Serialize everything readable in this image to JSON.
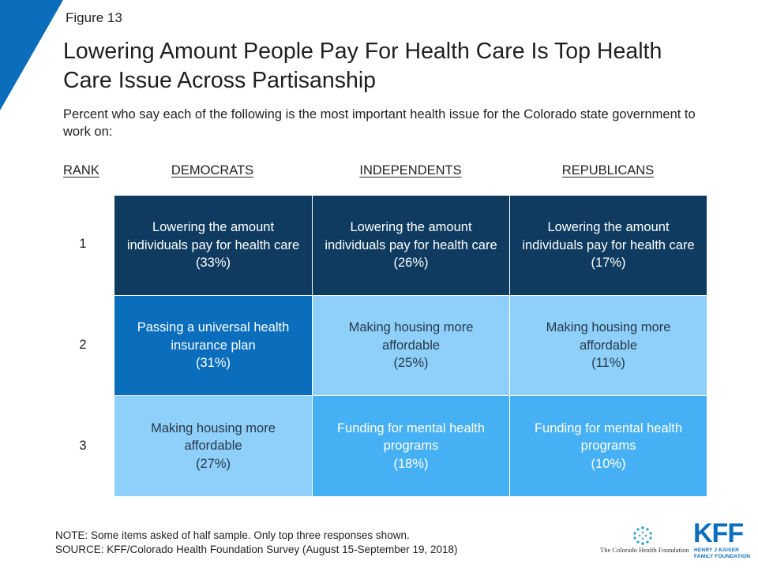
{
  "figure_label": "Figure 13",
  "colors": {
    "corner_accent": "#0a6ebd",
    "navy": "#0e3b5f",
    "blue": "#0a6ebd",
    "sky": "#46b0f5",
    "pale": "#8fd0fb"
  },
  "chart_data": {
    "type": "table",
    "title": "Lowering Amount People Pay For Health Care Is Top Health Care Issue Across Partisanship",
    "subtitle": "Percent who say each of the following is the most important health issue for the Colorado state government to work on:",
    "rank_header": "RANK",
    "columns": [
      "DEMOCRATS",
      "INDEPENDENTS",
      "REPUBLICANS"
    ],
    "ranks": [
      "1",
      "2",
      "3"
    ],
    "rows": [
      [
        {
          "issue": "Lowering the amount individuals pay for health care",
          "pct_label": "(33%)",
          "value": 33,
          "shade": "navy"
        },
        {
          "issue": "Lowering the amount individuals pay for health care",
          "pct_label": "(26%)",
          "value": 26,
          "shade": "navy"
        },
        {
          "issue": "Lowering the amount individuals pay for health care",
          "pct_label": "(17%)",
          "value": 17,
          "shade": "navy"
        }
      ],
      [
        {
          "issue": "Passing a universal health insurance plan",
          "pct_label": "(31%)",
          "value": 31,
          "shade": "blue"
        },
        {
          "issue": "Making housing more affordable",
          "pct_label": "(25%)",
          "value": 25,
          "shade": "pale"
        },
        {
          "issue": "Making housing more affordable",
          "pct_label": "(11%)",
          "value": 11,
          "shade": "pale"
        }
      ],
      [
        {
          "issue": "Making housing more affordable",
          "pct_label": "(27%)",
          "value": 27,
          "shade": "pale"
        },
        {
          "issue": "Funding for mental health programs",
          "pct_label": "(18%)",
          "value": 18,
          "shade": "sky"
        },
        {
          "issue": "Funding for mental health programs",
          "pct_label": "(10%)",
          "value": 10,
          "shade": "sky"
        }
      ]
    ]
  },
  "notes": {
    "note": "NOTE: Some items asked of half sample. Only top three responses shown.",
    "source": "SOURCE: KFF/Colorado Health Foundation Survey (August 15-September 19, 2018)"
  },
  "logos": {
    "chf_name": "The Colorado Health Foundation",
    "chf_icon": "sunburst-dots-icon",
    "kff_word": "KFF",
    "kff_sub": "HENRY J KAISER FAMILY FOUNDATION"
  }
}
